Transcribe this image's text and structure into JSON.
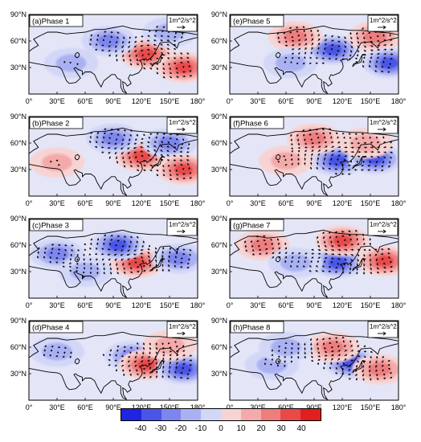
{
  "panels": [
    {
      "label": "(a)Phase 1",
      "ref_label": "1m^2/s^2"
    },
    {
      "label": "(e)Phase 5",
      "ref_label": "1m^2/s^2"
    },
    {
      "label": "(b)Phase 2",
      "ref_label": "1m^2/s^2"
    },
    {
      "label": "(f)Phase 6",
      "ref_label": "1m^2/s^2"
    },
    {
      "label": "(c)Phase 3",
      "ref_label": "1m^2/s^2"
    },
    {
      "label": "(g)Phase 7",
      "ref_label": "1m^2/s^2"
    },
    {
      "label": "(d)Phase 4",
      "ref_label": "1m^2/s^2"
    },
    {
      "label": "(h)Phase 8",
      "ref_label": "1m^2/s^2"
    }
  ],
  "axes": {
    "x_ticks": [
      "0°",
      "30°E",
      "60°E",
      "90°E",
      "120°E",
      "150°E",
      "180°"
    ],
    "y_ticks": [
      "90°N",
      "60°N",
      "30°N"
    ],
    "lon_range": [
      0,
      180
    ],
    "lat_range": [
      0,
      90
    ]
  },
  "colorbar": {
    "labels": [
      "-40",
      "-30",
      "-20",
      "-10",
      "0",
      "10",
      "20",
      "30",
      "40"
    ],
    "colors": [
      "#1f24e0",
      "#4a55e8",
      "#7d86ee",
      "#aab1f3",
      "#d3d7f7",
      "#f7d3d3",
      "#f4aaaa",
      "#ee7d7d",
      "#e84a4a",
      "#e01f1f"
    ]
  },
  "anomaly_centers": [
    [
      {
        "lon": 125,
        "lat": 45,
        "v": 35
      },
      {
        "lon": 165,
        "lat": 30,
        "v": 40
      },
      {
        "lon": 85,
        "lat": 60,
        "v": -25
      },
      {
        "lon": 45,
        "lat": 35,
        "v": -15
      },
      {
        "lon": 150,
        "lat": 70,
        "v": -20
      }
    ],
    [
      {
        "lon": 110,
        "lat": 50,
        "v": -35
      },
      {
        "lon": 155,
        "lat": 65,
        "v": 30
      },
      {
        "lon": 70,
        "lat": 65,
        "v": 25
      },
      {
        "lon": 170,
        "lat": 35,
        "v": -35
      },
      {
        "lon": 65,
        "lat": 35,
        "v": -15
      }
    ],
    [
      {
        "lon": 120,
        "lat": 45,
        "v": 40
      },
      {
        "lon": 90,
        "lat": 65,
        "v": -30
      },
      {
        "lon": 150,
        "lat": 60,
        "v": -25
      },
      {
        "lon": 165,
        "lat": 30,
        "v": 35
      },
      {
        "lon": 30,
        "lat": 38,
        "v": 15
      }
    ],
    [
      {
        "lon": 115,
        "lat": 40,
        "v": -40
      },
      {
        "lon": 90,
        "lat": 65,
        "v": 30
      },
      {
        "lon": 155,
        "lat": 42,
        "v": -35
      },
      {
        "lon": 145,
        "lat": 60,
        "v": 20
      },
      {
        "lon": 60,
        "lat": 40,
        "v": 15
      }
    ],
    [
      {
        "lon": 115,
        "lat": 40,
        "v": 40
      },
      {
        "lon": 95,
        "lat": 60,
        "v": -35
      },
      {
        "lon": 160,
        "lat": 45,
        "v": -30
      },
      {
        "lon": 30,
        "lat": 50,
        "v": -25
      },
      {
        "lon": 60,
        "lat": 30,
        "v": -15
      }
    ],
    [
      {
        "lon": 115,
        "lat": 40,
        "v": -35
      },
      {
        "lon": 120,
        "lat": 65,
        "v": 35
      },
      {
        "lon": 165,
        "lat": 42,
        "v": 35
      },
      {
        "lon": 35,
        "lat": 60,
        "v": 25
      },
      {
        "lon": 70,
        "lat": 40,
        "v": -15
      }
    ],
    [
      {
        "lon": 110,
        "lat": 50,
        "v": -30
      },
      {
        "lon": 125,
        "lat": 40,
        "v": 35
      },
      {
        "lon": 165,
        "lat": 35,
        "v": -40
      },
      {
        "lon": 30,
        "lat": 55,
        "v": -20
      },
      {
        "lon": 150,
        "lat": 62,
        "v": 15
      }
    ],
    [
      {
        "lon": 130,
        "lat": 42,
        "v": -40
      },
      {
        "lon": 110,
        "lat": 60,
        "v": 30
      },
      {
        "lon": 160,
        "lat": 35,
        "v": 25
      },
      {
        "lon": 45,
        "lat": 40,
        "v": -15
      },
      {
        "lon": 60,
        "lat": 60,
        "v": -15
      }
    ]
  ]
}
